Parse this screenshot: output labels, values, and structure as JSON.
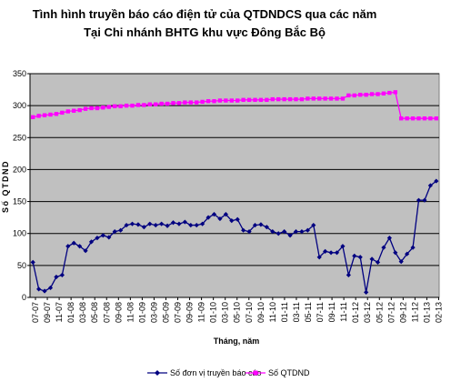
{
  "chart_data": {
    "type": "line",
    "title": "Tình hình truyền báo cáo điện tử của QTDNDCS qua các năm",
    "subtitle": "Tại Chi nhánh BHTG khu vực Đông Bắc Bộ",
    "xlabel": "Tháng, năm",
    "ylabel": "Số QTDND",
    "ylim": [
      0,
      350
    ],
    "yticks": [
      0,
      50,
      100,
      150,
      200,
      250,
      300,
      350
    ],
    "grid": true,
    "legend_position": "bottom",
    "x_tick_labels": [
      "07-07",
      "09-07",
      "11-07",
      "01-08",
      "03-08",
      "05-08",
      "07-08",
      "09-08",
      "11-08",
      "01-09",
      "03-09",
      "05-09",
      "07-09",
      "09-09",
      "11-09",
      "01-10",
      "03-10",
      "05-10",
      "07-10",
      "09-10",
      "11-10",
      "01-11",
      "03-11",
      "05-11",
      "07-11",
      "09-11",
      "11-11",
      "01-12",
      "03-12",
      "05-12",
      "07-12",
      "09-12",
      "11-12",
      "01-13",
      "02-13"
    ],
    "series": [
      {
        "name": "Số đơn vị truyền báo cáo",
        "color": "#000080",
        "marker": "diamond",
        "values": [
          55,
          13,
          10,
          15,
          32,
          35,
          80,
          85,
          80,
          73,
          87,
          93,
          97,
          94,
          103,
          105,
          113,
          115,
          114,
          110,
          115,
          113,
          115,
          112,
          117,
          115,
          118,
          113,
          113,
          115,
          125,
          130,
          123,
          130,
          120,
          122,
          105,
          103,
          113,
          114,
          110,
          103,
          100,
          103,
          97,
          103,
          103,
          105,
          113,
          63,
          72,
          70,
          70,
          80,
          35,
          65,
          63,
          8,
          60,
          55,
          78,
          93,
          70,
          56,
          68,
          78,
          152,
          152,
          175,
          182
        ]
      },
      {
        "name": "Số QTDND",
        "color": "#FF00FF",
        "marker": "square",
        "values": [
          282,
          284,
          285,
          286,
          287,
          289,
          291,
          292,
          293,
          295,
          296,
          296,
          297,
          298,
          299,
          299,
          300,
          300,
          301,
          301,
          302,
          302,
          303,
          303,
          304,
          304,
          305,
          305,
          305,
          306,
          307,
          307,
          308,
          308,
          308,
          308,
          309,
          309,
          309,
          309,
          309,
          310,
          310,
          310,
          310,
          310,
          310,
          311,
          311,
          311,
          311,
          311,
          311,
          311,
          316,
          316,
          317,
          317,
          318,
          318,
          319,
          320,
          321,
          280,
          280,
          280,
          280,
          280,
          280,
          280
        ]
      }
    ]
  }
}
